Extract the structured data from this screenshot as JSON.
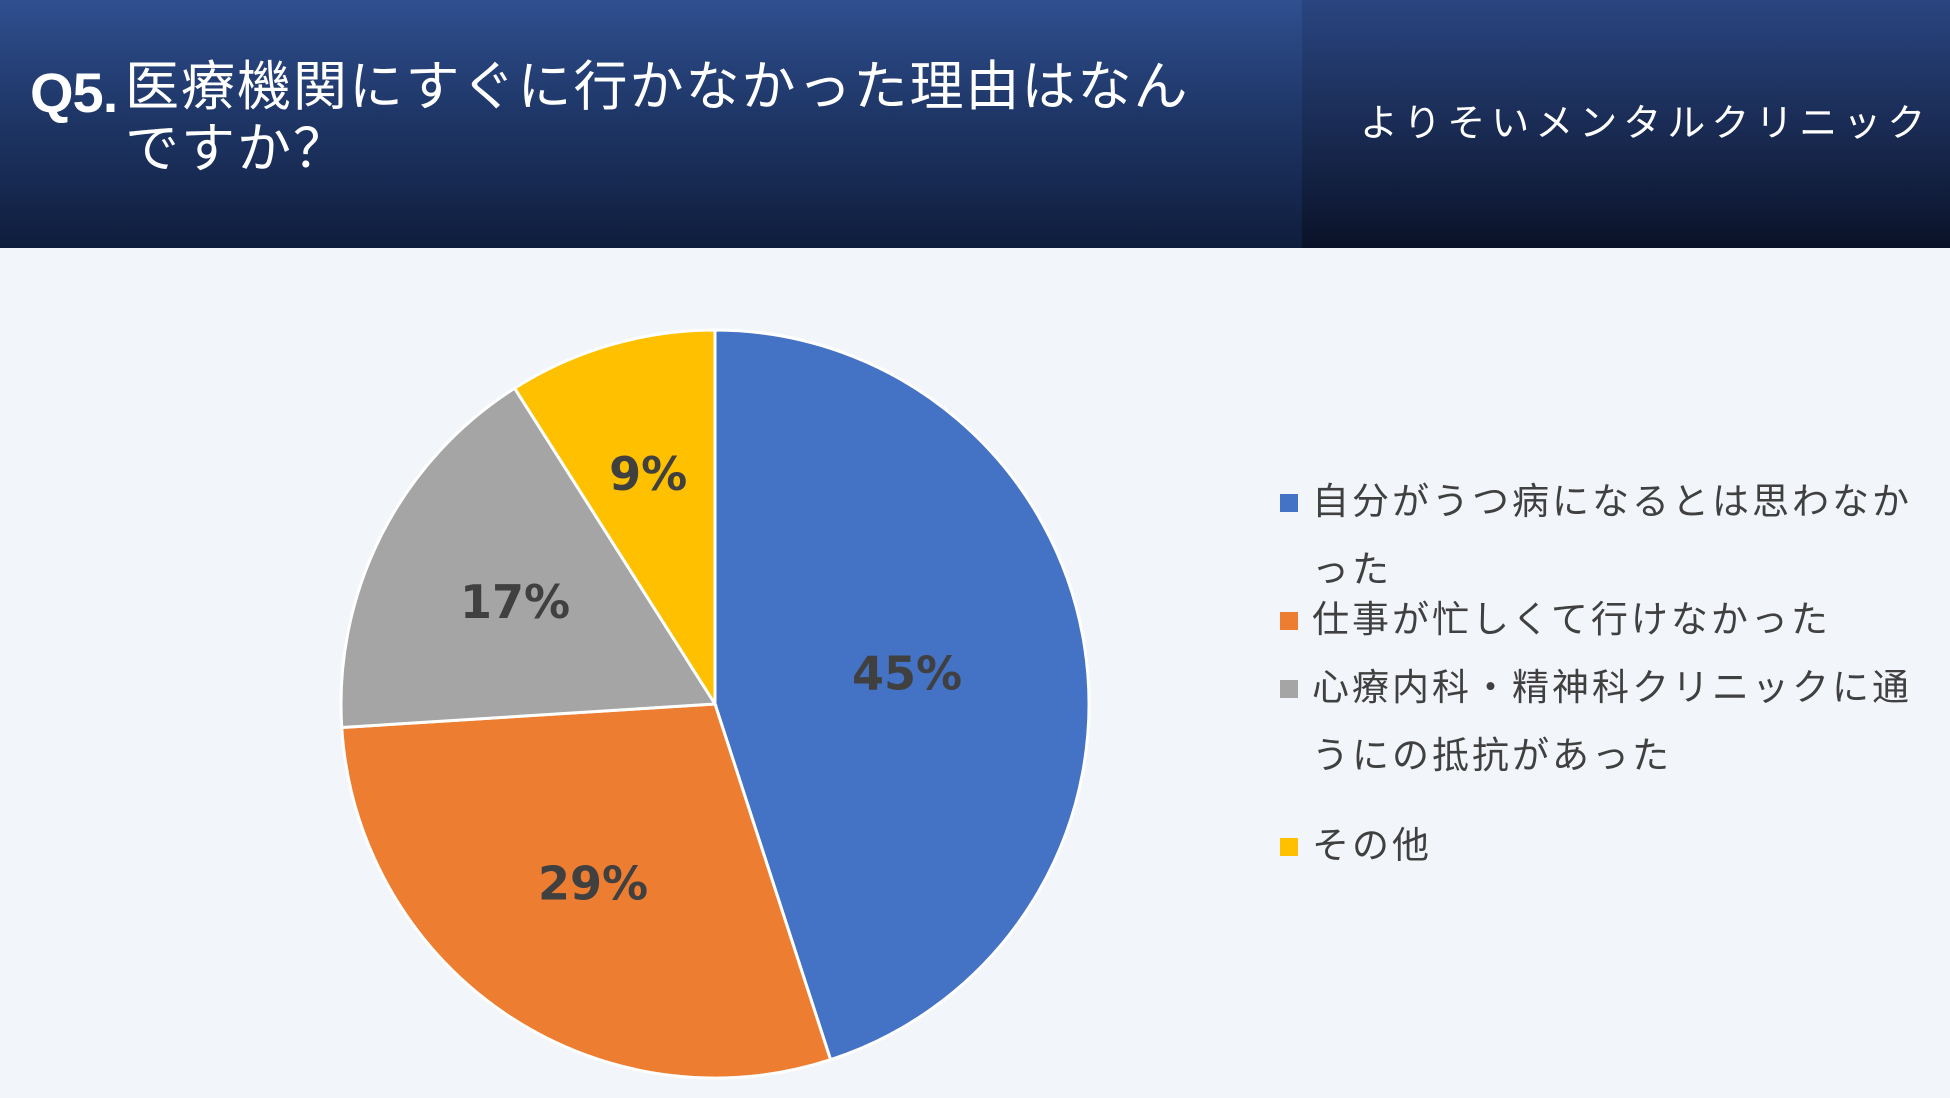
{
  "header": {
    "question_label": "Q5.",
    "title": "医療機関にすぐに行かなかった理由はなんですか？",
    "clinic_name": "よりそいメンタルクリニック"
  },
  "colors": {
    "header_bg": "#1f3768",
    "background": "#f2f5fa",
    "slice_1": "#4472c4",
    "slice_2": "#ed7d31",
    "slice_3": "#a5a5a5",
    "slice_4": "#ffc000"
  },
  "chart_data": {
    "type": "pie",
    "title": "",
    "categories": [
      "自分がうつ病になるとは思わなかった",
      "仕事が忙しくて行けなかった",
      "心療内科・精神科クリニックに通うにの抵抗があった",
      "その他"
    ],
    "values": [
      45,
      29,
      17,
      9
    ],
    "data_labels": [
      "45%",
      "29%",
      "17%",
      "9%"
    ],
    "colors": [
      "#4472c4",
      "#ed7d31",
      "#a5a5a5",
      "#ffc000"
    ],
    "legend_position": "right"
  }
}
